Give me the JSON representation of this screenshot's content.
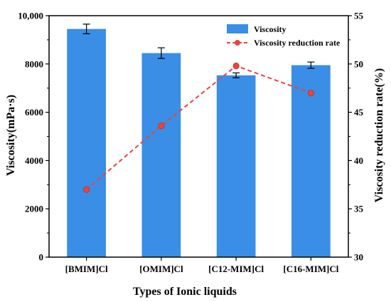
{
  "chart_data": {
    "type": "bar",
    "categories": [
      "[BMIM]Cl",
      "[OMIM]Cl",
      "[C12-MIM]Cl",
      "[C16-MIM]Cl"
    ],
    "xlabel": "Types of Ionic liquids",
    "ylabel_left": "Viscosity(mPa·s)",
    "ylabel_right": "Viscosity reduction rate(%)",
    "ylim_left": [
      0,
      10000
    ],
    "ylim_right": [
      30,
      55
    ],
    "yticks_left": [
      0,
      2000,
      4000,
      6000,
      8000,
      10000
    ],
    "yticks_left_labels": [
      "0",
      "2000",
      "4000",
      "6000",
      "8000",
      "10,000"
    ],
    "yticks_right": [
      30,
      35,
      40,
      45,
      50,
      55
    ],
    "series": [
      {
        "name": "Viscosity",
        "type": "bar",
        "axis": "left",
        "values": [
          9450,
          8450,
          7530,
          7950
        ],
        "errors": [
          200,
          220,
          100,
          130
        ]
      },
      {
        "name": "Viscosity reduction rate",
        "type": "line",
        "axis": "right",
        "values": [
          37.0,
          43.6,
          49.8,
          47.0
        ]
      }
    ],
    "legend_position": "top-right",
    "grid": false,
    "colors": {
      "bar": "#3a8ee6",
      "line": "#e8453c",
      "marker": "#e8453c"
    }
  }
}
